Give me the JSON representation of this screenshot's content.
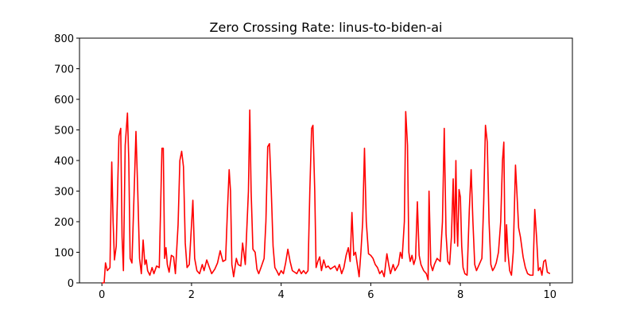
{
  "chart_data": {
    "type": "line",
    "title": "Zero Crossing Rate: linus-to-biden-ai",
    "x": [
      0.0,
      0.05,
      0.08,
      0.12,
      0.18,
      0.22,
      0.25,
      0.28,
      0.32,
      0.38,
      0.42,
      0.45,
      0.48,
      0.52,
      0.57,
      0.6,
      0.63,
      0.67,
      0.72,
      0.76,
      0.8,
      0.84,
      0.88,
      0.92,
      0.96,
      0.99,
      1.02,
      1.07,
      1.12,
      1.16,
      1.22,
      1.28,
      1.34,
      1.37,
      1.4,
      1.43,
      1.46,
      1.5,
      1.55,
      1.6,
      1.64,
      1.7,
      1.74,
      1.78,
      1.82,
      1.86,
      1.9,
      1.95,
      2.0,
      2.03,
      2.07,
      2.12,
      2.18,
      2.24,
      2.28,
      2.34,
      2.4,
      2.45,
      2.52,
      2.58,
      2.64,
      2.7,
      2.76,
      2.8,
      2.84,
      2.87,
      2.9,
      2.94,
      3.0,
      3.04,
      3.1,
      3.14,
      3.2,
      3.27,
      3.3,
      3.33,
      3.37,
      3.42,
      3.46,
      3.5,
      3.55,
      3.62,
      3.66,
      3.7,
      3.74,
      3.78,
      3.82,
      3.86,
      3.9,
      3.95,
      4.0,
      4.05,
      4.1,
      4.15,
      4.2,
      4.25,
      4.3,
      4.35,
      4.4,
      4.45,
      4.5,
      4.55,
      4.6,
      4.64,
      4.68,
      4.71,
      4.75,
      4.78,
      4.82,
      4.86,
      4.9,
      4.95,
      5.0,
      5.05,
      5.1,
      5.15,
      5.2,
      5.25,
      5.3,
      5.35,
      5.4,
      5.45,
      5.5,
      5.54,
      5.58,
      5.62,
      5.66,
      5.7,
      5.74,
      5.78,
      5.82,
      5.86,
      5.9,
      5.95,
      6.0,
      6.05,
      6.1,
      6.15,
      6.2,
      6.25,
      6.3,
      6.36,
      6.4,
      6.44,
      6.5,
      6.54,
      6.58,
      6.62,
      6.66,
      6.7,
      6.75,
      6.78,
      6.82,
      6.85,
      6.88,
      6.92,
      6.96,
      7.0,
      7.04,
      7.08,
      7.12,
      7.18,
      7.24,
      7.28,
      7.3,
      7.34,
      7.38,
      7.42,
      7.48,
      7.55,
      7.6,
      7.64,
      7.68,
      7.72,
      7.76,
      7.8,
      7.84,
      7.87,
      7.9,
      7.92,
      7.94,
      7.97,
      8.0,
      8.03,
      8.06,
      8.1,
      8.15,
      8.2,
      8.24,
      8.28,
      8.32,
      8.36,
      8.42,
      8.48,
      8.52,
      8.56,
      8.6,
      8.64,
      8.68,
      8.72,
      8.76,
      8.8,
      8.85,
      8.9,
      8.94,
      8.97,
      9.0,
      9.03,
      9.06,
      9.1,
      9.14,
      9.18,
      9.23,
      9.26,
      9.3,
      9.34,
      9.4,
      9.45,
      9.5,
      9.56,
      9.62,
      9.66,
      9.7,
      9.74,
      9.78,
      9.82,
      9.86,
      9.9,
      9.94,
      10.0
    ],
    "series": [
      {
        "color": "#ff0000",
        "values": [
          0,
          0,
          65,
          40,
          50,
          395,
          200,
          75,
          120,
          480,
          505,
          150,
          40,
          450,
          555,
          400,
          80,
          65,
          300,
          495,
          300,
          80,
          30,
          140,
          60,
          75,
          40,
          25,
          50,
          30,
          55,
          50,
          440,
          440,
          80,
          115,
          60,
          35,
          90,
          85,
          30,
          190,
          400,
          430,
          380,
          130,
          50,
          60,
          190,
          270,
          80,
          40,
          30,
          60,
          40,
          75,
          50,
          30,
          45,
          65,
          105,
          70,
          75,
          230,
          370,
          300,
          60,
          20,
          80,
          60,
          55,
          130,
          60,
          300,
          565,
          300,
          110,
          100,
          45,
          30,
          50,
          80,
          200,
          445,
          455,
          300,
          120,
          50,
          40,
          25,
          40,
          30,
          65,
          110,
          70,
          40,
          35,
          30,
          45,
          30,
          40,
          30,
          40,
          300,
          505,
          515,
          300,
          50,
          70,
          85,
          40,
          75,
          50,
          55,
          45,
          50,
          55,
          40,
          60,
          30,
          50,
          90,
          115,
          70,
          230,
          90,
          100,
          60,
          20,
          100,
          200,
          440,
          200,
          95,
          90,
          80,
          60,
          50,
          30,
          40,
          20,
          95,
          60,
          30,
          60,
          40,
          50,
          60,
          100,
          80,
          200,
          560,
          450,
          100,
          70,
          90,
          60,
          80,
          265,
          90,
          60,
          40,
          30,
          10,
          300,
          60,
          40,
          60,
          80,
          70,
          200,
          505,
          160,
          70,
          60,
          150,
          340,
          130,
          400,
          200,
          120,
          305,
          280,
          120,
          50,
          30,
          25,
          240,
          370,
          200,
          60,
          40,
          60,
          80,
          260,
          515,
          460,
          200,
          60,
          40,
          50,
          65,
          100,
          200,
          400,
          460,
          70,
          190,
          100,
          40,
          25,
          100,
          385,
          300,
          180,
          150,
          85,
          50,
          30,
          25,
          25,
          240,
          150,
          40,
          50,
          25,
          70,
          75,
          35,
          30
        ]
      }
    ],
    "xlim": [
      -0.5,
      10.5
    ],
    "ylim": [
      0,
      800
    ],
    "xticks": [
      0,
      2,
      4,
      6,
      8,
      10
    ],
    "yticks": [
      0,
      100,
      200,
      300,
      400,
      500,
      600,
      700,
      800
    ]
  }
}
